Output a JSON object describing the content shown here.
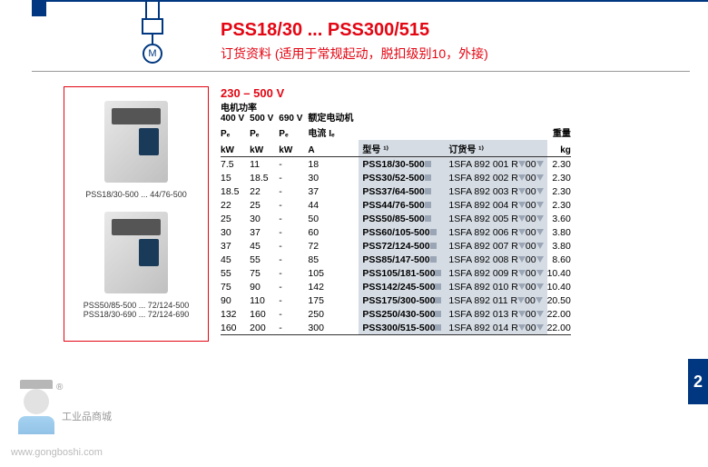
{
  "title": "PSS18/30 ... PSS300/515",
  "subtitle": "订货资料 (适用于常规起动，脱扣级别10，外接)",
  "motor": "M",
  "voltage_range": "230 – 500 V",
  "motor_label": "电机功率",
  "side_tab": "2",
  "products": [
    {
      "caption": "PSS18/30-500 ... 44/76-500"
    },
    {
      "caption_l1": "PSS50/85-500 ... 72/124-500",
      "caption_l2": "PSS18/30-690 ... 72/124-690"
    }
  ],
  "headers": {
    "c400": "400 V",
    "c500": "500 V",
    "c690": "690 V",
    "pe": "Pₑ",
    "kw": "kW",
    "current_l1": "额定电动机",
    "current_l2": "电流 Iₑ",
    "current_u": "A",
    "model": "型号 ¹⁾",
    "order": "订货号 ¹⁾",
    "weight_l1": "重量",
    "weight_u": "kg"
  },
  "rows": [
    {
      "v400": "7.5",
      "v500": "11",
      "v690": "-",
      "cur": "18",
      "model": "PSS18/30-500",
      "order": "1SFA 892 001 R",
      "oc": "00",
      "wt": "2.30"
    },
    {
      "v400": "15",
      "v500": "18.5",
      "v690": "-",
      "cur": "30",
      "model": "PSS30/52-500",
      "order": "1SFA 892 002 R",
      "oc": "00",
      "wt": "2.30"
    },
    {
      "v400": "18.5",
      "v500": "22",
      "v690": "-",
      "cur": "37",
      "model": "PSS37/64-500",
      "order": "1SFA 892 003 R",
      "oc": "00",
      "wt": "2.30"
    },
    {
      "v400": "22",
      "v500": "25",
      "v690": "-",
      "cur": "44",
      "model": "PSS44/76-500",
      "order": "1SFA 892 004 R",
      "oc": "00",
      "wt": "2.30"
    },
    {
      "v400": "25",
      "v500": "30",
      "v690": "-",
      "cur": "50",
      "model": "PSS50/85-500",
      "order": "1SFA 892 005 R",
      "oc": "00",
      "wt": "3.60"
    },
    {
      "v400": "30",
      "v500": "37",
      "v690": "-",
      "cur": "60",
      "model": "PSS60/105-500",
      "order": "1SFA 892 006 R",
      "oc": "00",
      "wt": "3.80"
    },
    {
      "v400": "37",
      "v500": "45",
      "v690": "-",
      "cur": "72",
      "model": "PSS72/124-500",
      "order": "1SFA 892 007 R",
      "oc": "00",
      "wt": "3.80"
    },
    {
      "v400": "45",
      "v500": "55",
      "v690": "-",
      "cur": "85",
      "model": "PSS85/147-500",
      "order": "1SFA 892 008 R",
      "oc": "00",
      "wt": "8.60"
    },
    {
      "v400": "55",
      "v500": "75",
      "v690": "-",
      "cur": "105",
      "model": "PSS105/181-500",
      "order": "1SFA 892 009 R",
      "oc": "00",
      "wt": "10.40"
    },
    {
      "v400": "75",
      "v500": "90",
      "v690": "-",
      "cur": "142",
      "model": "PSS142/245-500",
      "order": "1SFA 892 010 R",
      "oc": "00",
      "wt": "10.40"
    },
    {
      "v400": "90",
      "v500": "110",
      "v690": "-",
      "cur": "175",
      "model": "PSS175/300-500",
      "order": "1SFA 892 011 R",
      "oc": "00",
      "wt": "20.50"
    },
    {
      "v400": "132",
      "v500": "160",
      "v690": "-",
      "cur": "250",
      "model": "PSS250/430-500",
      "order": "1SFA 892 013 R",
      "oc": "00",
      "wt": "22.00"
    },
    {
      "v400": "160",
      "v500": "200",
      "v690": "-",
      "cur": "300",
      "model": "PSS300/515-500",
      "order": "1SFA 892 014 R",
      "oc": "00",
      "wt": "22.00"
    }
  ],
  "watermark": {
    "text": "工业品商城",
    "url": "www.gongboshi.com",
    "reg": "®"
  }
}
